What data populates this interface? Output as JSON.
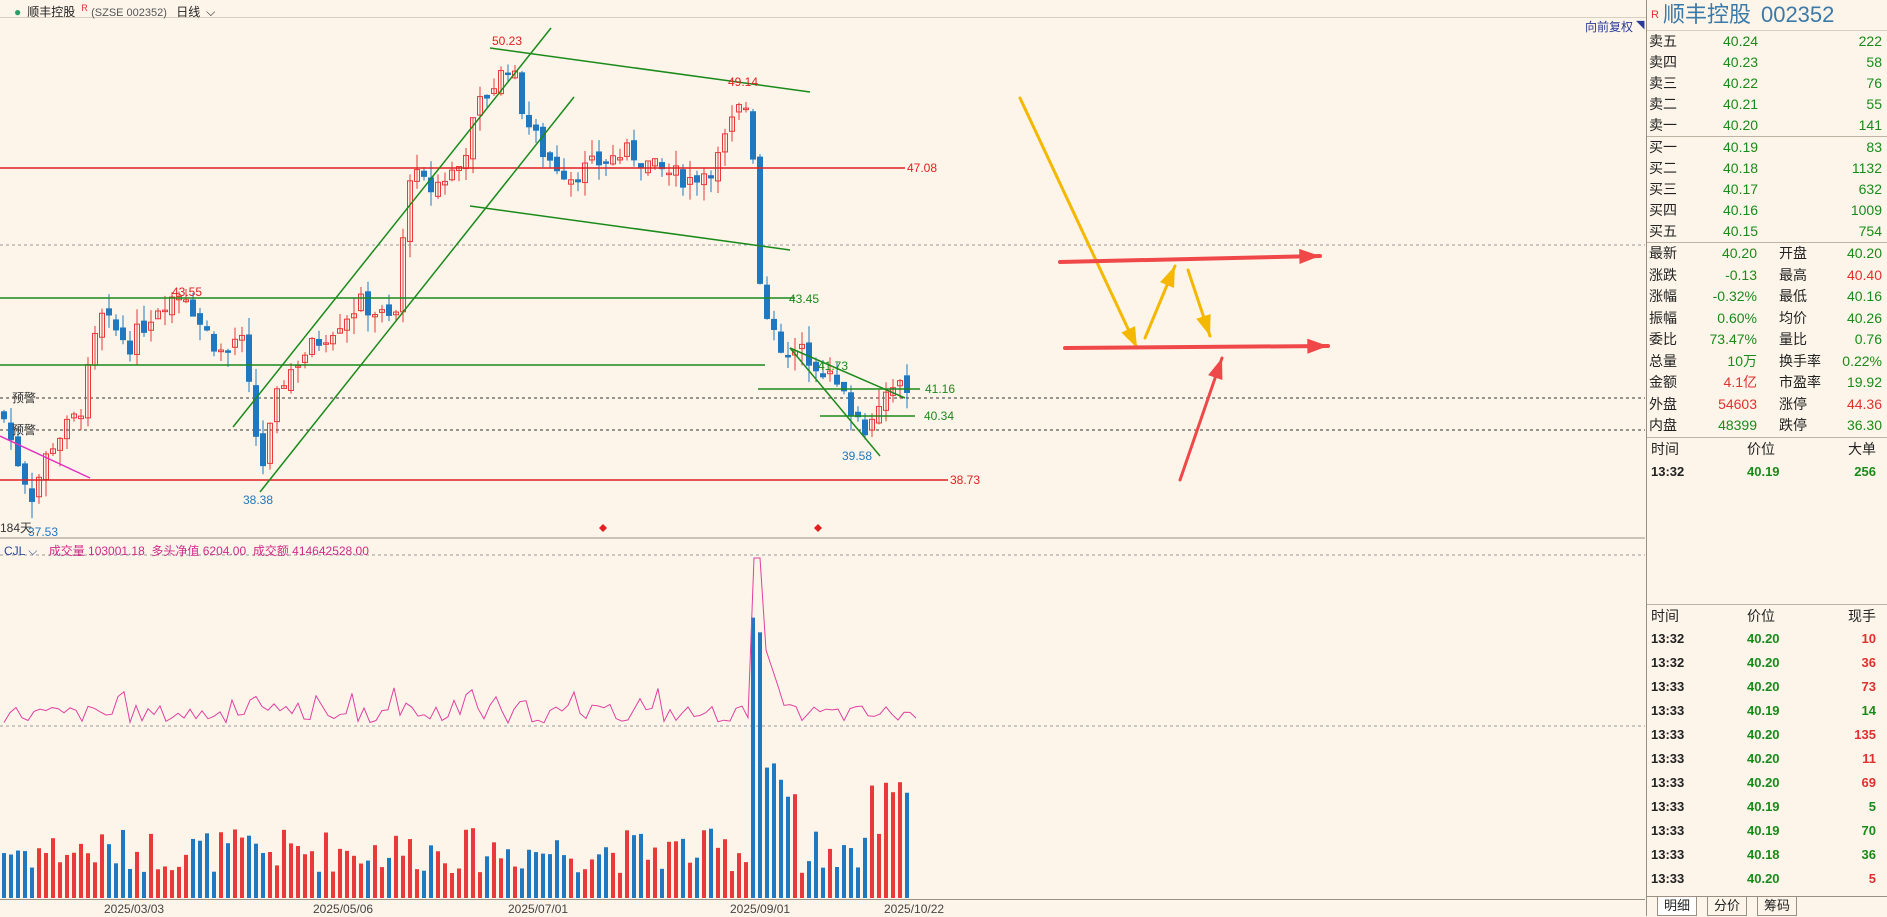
{
  "header": {
    "stock_name": "顺丰控股",
    "rmark": "R",
    "exchange_code": "(SZSE 002352)",
    "period": "日线"
  },
  "chart": {
    "restore_label": "向前复权",
    "price_labels": {
      "high_main": "50.23",
      "high_second": "49.14",
      "line_47": "47.08",
      "peak_left": "43.55",
      "line_43": "43.45",
      "line_41_73": "41.73",
      "line_41_16": "41.16",
      "line_40_34": "40.34",
      "low_39": "39.58",
      "low_38_38": "38.38",
      "line_38_73": "38.73",
      "low_left": "37.53",
      "left_marker": "184天"
    },
    "alert_labels": [
      "预警",
      "预警"
    ],
    "volume_header": {
      "indicator": "CJL",
      "vol_label": "成交量 103001.18",
      "net_label": "多头净值 6204.00",
      "amount_label": "成交额 414642528.00"
    },
    "x_axis": [
      "2025/03/03",
      "2025/05/06",
      "2025/07/01",
      "2025/09/01",
      "2025/10/22"
    ],
    "colors": {
      "up": "#e83a3a",
      "down": "#1f78c0",
      "support": "#1a8a1a",
      "resistance": "#e02020",
      "arrow_yellow": "#f5b800",
      "arrow_red": "#f04848",
      "magenta": "#e030c0"
    }
  },
  "panel": {
    "title": "顺丰控股",
    "code": "002352",
    "asks": [
      {
        "label": "卖五",
        "price": "40.24",
        "vol": "222"
      },
      {
        "label": "卖四",
        "price": "40.23",
        "vol": "58"
      },
      {
        "label": "卖三",
        "price": "40.22",
        "vol": "76"
      },
      {
        "label": "卖二",
        "price": "40.21",
        "vol": "55"
      },
      {
        "label": "卖一",
        "price": "40.20",
        "vol": "141"
      }
    ],
    "bids": [
      {
        "label": "买一",
        "price": "40.19",
        "vol": "83"
      },
      {
        "label": "买二",
        "price": "40.18",
        "vol": "1132"
      },
      {
        "label": "买三",
        "price": "40.17",
        "vol": "632"
      },
      {
        "label": "买四",
        "price": "40.16",
        "vol": "1009"
      },
      {
        "label": "买五",
        "price": "40.15",
        "vol": "754"
      }
    ],
    "stats": [
      {
        "l1": "最新",
        "v1": "40.20",
        "c1": "green",
        "l2": "开盘",
        "v2": "40.20",
        "c2": "green"
      },
      {
        "l1": "涨跌",
        "v1": "-0.13",
        "c1": "green",
        "l2": "最高",
        "v2": "40.40",
        "c2": "red"
      },
      {
        "l1": "涨幅",
        "v1": "-0.32%",
        "c1": "green",
        "l2": "最低",
        "v2": "40.16",
        "c2": "green"
      },
      {
        "l1": "振幅",
        "v1": "0.60%",
        "c1": "green",
        "l2": "均价",
        "v2": "40.26",
        "c2": "green"
      },
      {
        "l1": "委比",
        "v1": "73.47%",
        "c1": "green",
        "l2": "量比",
        "v2": "0.76",
        "c2": "green"
      },
      {
        "l1": "总量",
        "v1": "10万",
        "c1": "green",
        "l2": "换手率",
        "v2": "0.22%",
        "c2": "green"
      },
      {
        "l1": "金额",
        "v1": "4.1亿",
        "c1": "red",
        "l2": "市盈率",
        "v2": "19.92",
        "c2": "green"
      },
      {
        "l1": "外盘",
        "v1": "54603",
        "c1": "red",
        "l2": "涨停",
        "v2": "44.36",
        "c2": "red"
      },
      {
        "l1": "内盘",
        "v1": "48399",
        "c1": "green",
        "l2": "跌停",
        "v2": "36.30",
        "c2": "green"
      }
    ],
    "big_order_header": {
      "time": "时间",
      "price": "价位",
      "vol": "大单"
    },
    "big_order": {
      "time": "13:32",
      "price": "40.19",
      "vol": "256"
    },
    "ticks_header": {
      "time": "时间",
      "price": "价位",
      "vol": "现手"
    },
    "ticks": [
      {
        "time": "13:32",
        "price": "40.20",
        "vol": "10",
        "vc": "red"
      },
      {
        "time": "13:32",
        "price": "40.20",
        "vol": "36",
        "vc": "red"
      },
      {
        "time": "13:33",
        "price": "40.20",
        "vol": "73",
        "vc": "red"
      },
      {
        "time": "13:33",
        "price": "40.19",
        "vol": "14",
        "vc": "green"
      },
      {
        "time": "13:33",
        "price": "40.20",
        "vol": "135",
        "vc": "red"
      },
      {
        "time": "13:33",
        "price": "40.20",
        "vol": "11",
        "vc": "red"
      },
      {
        "time": "13:33",
        "price": "40.20",
        "vol": "69",
        "vc": "red"
      },
      {
        "time": "13:33",
        "price": "40.19",
        "vol": "5",
        "vc": "green"
      },
      {
        "time": "13:33",
        "price": "40.19",
        "vol": "70",
        "vc": "green"
      },
      {
        "time": "13:33",
        "price": "40.18",
        "vol": "36",
        "vc": "green"
      },
      {
        "time": "13:33",
        "price": "40.20",
        "vol": "5",
        "vc": "red"
      }
    ],
    "tabs": [
      "明细",
      "分价",
      "筹码"
    ]
  }
}
